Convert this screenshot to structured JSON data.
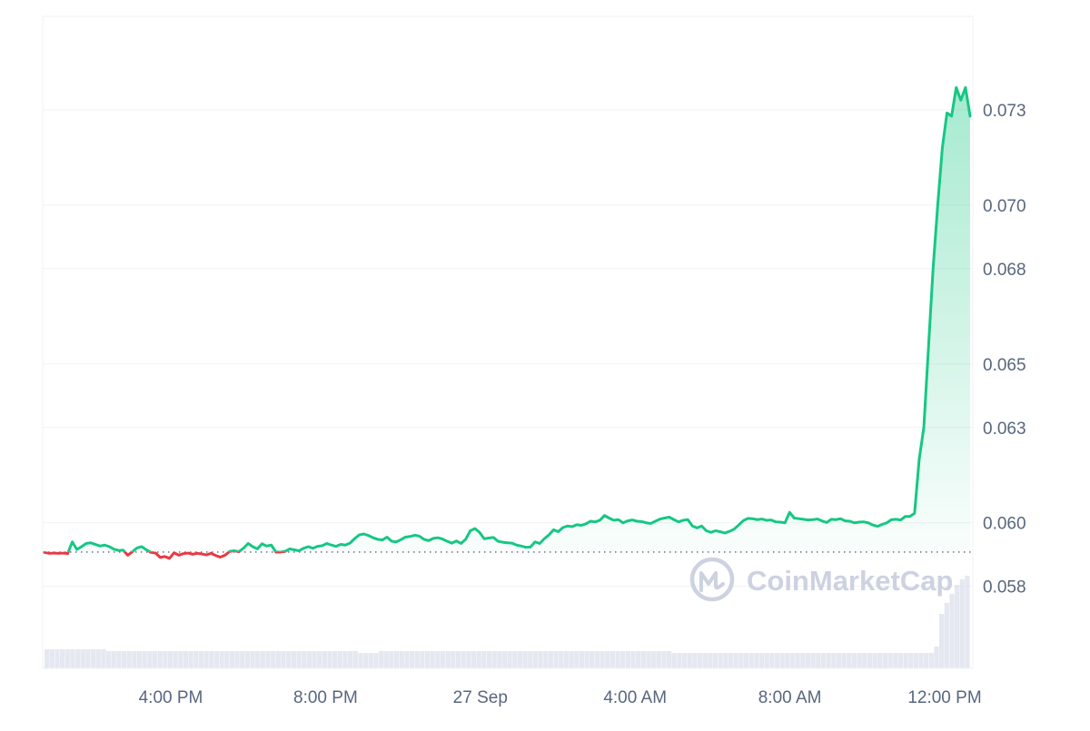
{
  "chart_data": {
    "type": "area",
    "x_ticks": [
      "4:00 PM",
      "8:00 PM",
      "27 Sep",
      "4:00 AM",
      "8:00 AM",
      "12:00 PM"
    ],
    "y_ticks": [
      "0.073",
      "0.070",
      "0.068",
      "0.065",
      "0.063",
      "0.060",
      "0.058"
    ],
    "y_tick_values": [
      0.073,
      0.07,
      0.068,
      0.065,
      0.063,
      0.06,
      0.058
    ],
    "baseline": 0.05908,
    "watermark": "CoinMarketCap",
    "ylim": [
      0.05542,
      0.07594
    ],
    "series": [
      {
        "values": [
          0.05907,
          0.05904,
          0.05905,
          0.05904,
          0.05905,
          0.05903,
          0.0594,
          0.05916,
          0.05925,
          0.05935,
          0.05937,
          0.05932,
          0.05927,
          0.0593,
          0.05925,
          0.05917,
          0.05913,
          0.05914,
          0.05898,
          0.05909,
          0.05921,
          0.05925,
          0.05915,
          0.05907,
          0.05905,
          0.05891,
          0.05894,
          0.05888,
          0.05906,
          0.05898,
          0.05903,
          0.05905,
          0.05901,
          0.05904,
          0.05902,
          0.05899,
          0.05904,
          0.05897,
          0.05892,
          0.05898,
          0.0591,
          0.05912,
          0.05909,
          0.0592,
          0.05935,
          0.05925,
          0.05918,
          0.05934,
          0.05927,
          0.0593,
          0.05908,
          0.05908,
          0.0591,
          0.05918,
          0.05915,
          0.05912,
          0.0592,
          0.05925,
          0.0592,
          0.05926,
          0.05928,
          0.05935,
          0.0593,
          0.05926,
          0.05932,
          0.0593,
          0.05936,
          0.0595,
          0.05962,
          0.05965,
          0.0596,
          0.05953,
          0.05948,
          0.05946,
          0.05955,
          0.05942,
          0.0594,
          0.05947,
          0.05955,
          0.05957,
          0.05961,
          0.05958,
          0.05948,
          0.05944,
          0.05951,
          0.05953,
          0.05949,
          0.05942,
          0.05936,
          0.05943,
          0.05935,
          0.05948,
          0.05975,
          0.05982,
          0.0597,
          0.0595,
          0.05952,
          0.05954,
          0.05942,
          0.05939,
          0.05937,
          0.05936,
          0.0593,
          0.05927,
          0.05923,
          0.05924,
          0.0594,
          0.05935,
          0.0595,
          0.05962,
          0.05978,
          0.05972,
          0.05985,
          0.0599,
          0.05988,
          0.05994,
          0.05992,
          0.05997,
          0.06005,
          0.06003,
          0.06008,
          0.06023,
          0.06015,
          0.06008,
          0.0601,
          0.06,
          0.06006,
          0.06009,
          0.06005,
          0.06004,
          0.06,
          0.05998,
          0.06005,
          0.06012,
          0.06015,
          0.06018,
          0.0601,
          0.06003,
          0.06008,
          0.0601,
          0.0599,
          0.05984,
          0.0599,
          0.05975,
          0.0597,
          0.05975,
          0.05972,
          0.05968,
          0.05973,
          0.0598,
          0.05993,
          0.06007,
          0.06014,
          0.06013,
          0.0601,
          0.06012,
          0.06008,
          0.06009,
          0.06003,
          0.06002,
          0.06,
          0.06033,
          0.06015,
          0.06013,
          0.06011,
          0.06009,
          0.0601,
          0.06012,
          0.06006,
          0.06001,
          0.06011,
          0.0601,
          0.06013,
          0.06006,
          0.06005,
          0.06,
          0.06002,
          0.06003,
          0.06,
          0.05993,
          0.05989,
          0.05995,
          0.06,
          0.0601,
          0.06011,
          0.06009,
          0.0602,
          0.0602,
          0.0603,
          0.062,
          0.063,
          0.0655,
          0.068,
          0.07,
          0.0718,
          0.0729,
          0.0728,
          0.0737,
          0.0733,
          0.0737,
          0.0728
        ]
      }
    ],
    "colors": {
      "up_line": "#16c784",
      "down_line": "#ea3943",
      "up_fill": "#16c784",
      "grid": "#eff2f5",
      "axis_text": "#58667e",
      "baseline": "#58667e",
      "volume": "#cfd6e4",
      "watermark": "#c5cbdc"
    }
  }
}
